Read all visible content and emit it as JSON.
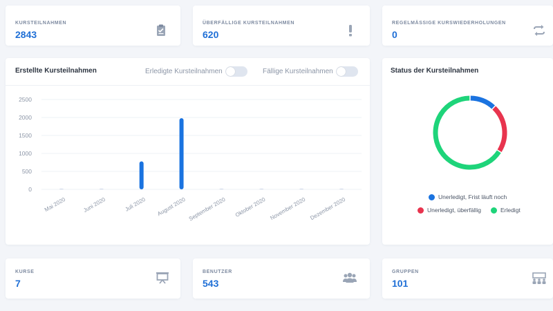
{
  "stats_top": [
    {
      "label": "KURSTEILNAHMEN",
      "value": "2843",
      "icon": "clipboard-icon"
    },
    {
      "label": "ÜBERFÄLLIGE KURSTEILNAHMEN",
      "value": "620",
      "icon": "exclamation-icon"
    },
    {
      "label": "REGELMÄSSIGE KURSWIEDERHOLUNGEN",
      "value": "0",
      "icon": "repeat-icon"
    }
  ],
  "stats_bottom": [
    {
      "label": "KURSE",
      "value": "7",
      "icon": "presentation-board-icon"
    },
    {
      "label": "BENUTZER",
      "value": "543",
      "icon": "users-icon"
    },
    {
      "label": "GRUPPEN",
      "value": "101",
      "icon": "groups-icon"
    }
  ],
  "bar_panel": {
    "title": "Erstellte Kursteilnahmen",
    "toggle_completed_label": "Erledigte Kursteilnahmen",
    "toggle_due_label": "Fällige Kursteilnahmen"
  },
  "donut_panel": {
    "title": "Status der Kursteilnahmen"
  },
  "colors": {
    "accent": "#1f6fd6",
    "bar": "#1a73e0",
    "open_on_time": "#1a73e0",
    "overdue": "#e8344e",
    "completed": "#1ed47a"
  },
  "chart_data": [
    {
      "type": "bar",
      "categories": [
        "Mai 2020",
        "Juni 2020",
        "Juli 2020",
        "August 2020",
        "September 2020",
        "Oktober 2020",
        "November 2020",
        "Dezember 2020"
      ],
      "values": [
        0,
        0,
        780,
        1980,
        5,
        15,
        15,
        5
      ],
      "yticks": [
        "2500",
        "2000",
        "1500",
        "1000",
        "500",
        "0"
      ],
      "ylim": [
        0,
        2500
      ],
      "grid": true
    },
    {
      "type": "pie",
      "donut": true,
      "categories": [
        "Unerledigt, Frist läuft noch",
        "Unerledigt, überfällig",
        "Erledigt"
      ],
      "values": [
        12,
        22,
        66
      ],
      "legend": "bottom"
    }
  ]
}
